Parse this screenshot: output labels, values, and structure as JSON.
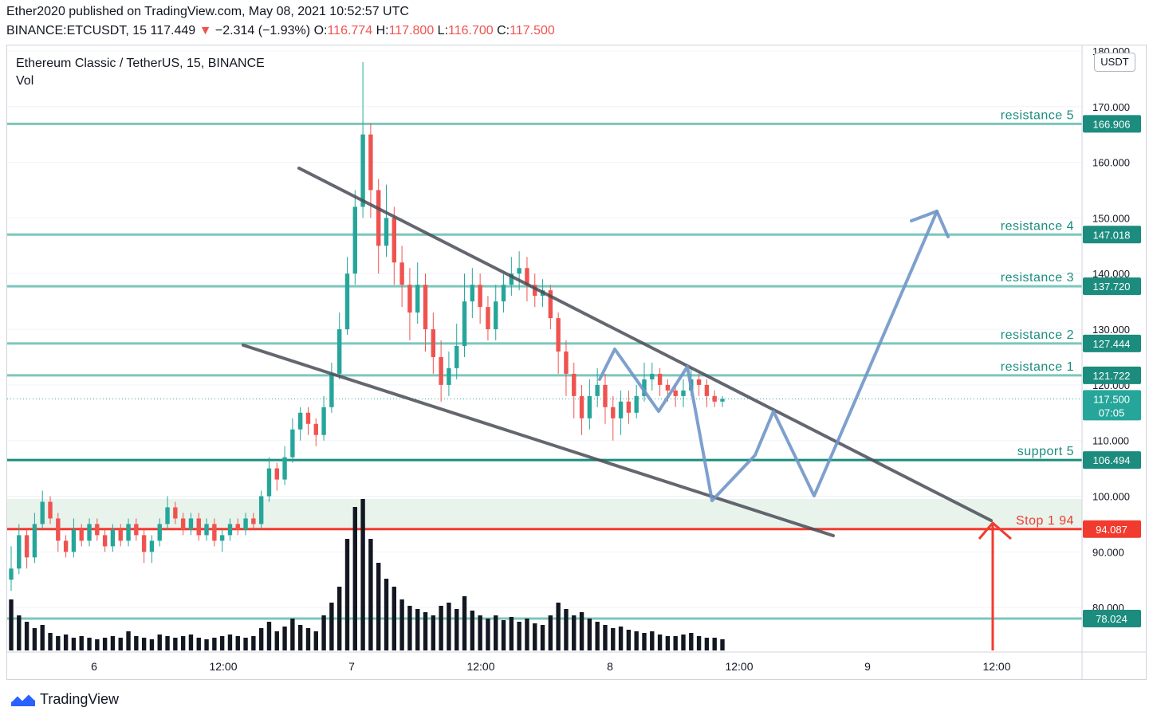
{
  "header": {
    "publish_line": "Ether2020 published on TradingView.com, May 08, 2021 10:52:57 UTC",
    "symbol": "BINANCE:ETCUSDT, 15",
    "last": "117.449",
    "change_arrow": "▼",
    "change": "−2.314 (−1.93%)",
    "o_label": "O:",
    "o_value": "116.774",
    "h_label": "H:",
    "h_value": "117.800",
    "l_label": "L:",
    "l_value": "116.700",
    "c_label": "C:",
    "c_value": "117.500"
  },
  "legend": {
    "title": "Ethereum Classic / TetherUS, 15, BINANCE",
    "vol": "Vol"
  },
  "unit_label": "USDT",
  "footer": {
    "brand": "TradingView"
  },
  "colors": {
    "up": "#26a69a",
    "down": "#ef5350",
    "level": "#7cc6bc",
    "level_dark": "#1b8c7e",
    "stop": "#f23b2f",
    "trend": "#4a4d57",
    "projection": "#7096c8",
    "volume": "#131722"
  },
  "chart_data": {
    "type": "candlestick",
    "symbol": "ETCUSDT",
    "interval": "15",
    "ylim": [
      72,
      181
    ],
    "y_ticks": [
      "180.000",
      "170.000",
      "160.000",
      "150.000",
      "140.000",
      "130.000",
      "120.000",
      "110.000",
      "100.000",
      "90.000",
      "80.000"
    ],
    "x_ticks": [
      "6",
      "12:00",
      "7",
      "12:00",
      "8",
      "12:00",
      "9",
      "12:00"
    ],
    "current_price": "117.500",
    "countdown": "07:05",
    "levels": [
      {
        "label": "resistance 5",
        "price": 166.906,
        "price_label": "166.906"
      },
      {
        "label": "resistance 4",
        "price": 147.018,
        "price_label": "147.018"
      },
      {
        "label": "resistance 3",
        "price": 137.72,
        "price_label": "137.720"
      },
      {
        "label": "resistance 2",
        "price": 127.444,
        "price_label": "127.444"
      },
      {
        "label": "resistance 1",
        "price": 121.722,
        "price_label": "121.722"
      },
      {
        "label": "support 5",
        "price": 106.494,
        "price_label": "106.494"
      },
      {
        "label": "Stop 1  94",
        "price": 94.087,
        "price_label": "94.087"
      },
      {
        "label": "",
        "price": 78.024,
        "price_label": "78.024"
      }
    ],
    "zone": [
      94.087,
      99.5
    ],
    "candles": [
      [
        85,
        87,
        91,
        83
      ],
      [
        87,
        93,
        95,
        86
      ],
      [
        93,
        89,
        94,
        87
      ],
      [
        89,
        95,
        97,
        88
      ],
      [
        95,
        99,
        101,
        94
      ],
      [
        99,
        96,
        100,
        95
      ],
      [
        96,
        92,
        97,
        90
      ],
      [
        92,
        90,
        93,
        89
      ],
      [
        90,
        94,
        96,
        89
      ],
      [
        94,
        92,
        95,
        91
      ],
      [
        92,
        95,
        96,
        91
      ],
      [
        95,
        93,
        96,
        92
      ],
      [
        93,
        91,
        94,
        90
      ],
      [
        91,
        94,
        95,
        90
      ],
      [
        94,
        92,
        95,
        91
      ],
      [
        92,
        95,
        96,
        91
      ],
      [
        95,
        93,
        96,
        92
      ],
      [
        93,
        90,
        94,
        88
      ],
      [
        90,
        92,
        93,
        88
      ],
      [
        92,
        95,
        96,
        91
      ],
      [
        95,
        98,
        100,
        94
      ],
      [
        98,
        96,
        99,
        95
      ],
      [
        96,
        94,
        97,
        93
      ],
      [
        94,
        96,
        97,
        93
      ],
      [
        96,
        93,
        97,
        92
      ],
      [
        93,
        95,
        96,
        92
      ],
      [
        95,
        92,
        96,
        91
      ],
      [
        92,
        93,
        94,
        90
      ],
      [
        93,
        95,
        96,
        92
      ],
      [
        95,
        94,
        96,
        93
      ],
      [
        94,
        96,
        97,
        93
      ],
      [
        96,
        95,
        97,
        94
      ],
      [
        95,
        100,
        101,
        94
      ],
      [
        100,
        105,
        107,
        99
      ],
      [
        105,
        103,
        106,
        101
      ],
      [
        103,
        107,
        109,
        102
      ],
      [
        107,
        112,
        114,
        106
      ],
      [
        112,
        115,
        116,
        110
      ],
      [
        115,
        113,
        116,
        111
      ],
      [
        113,
        111,
        114,
        109
      ],
      [
        111,
        116,
        118,
        110
      ],
      [
        116,
        122,
        124,
        115
      ],
      [
        122,
        130,
        133,
        121
      ],
      [
        130,
        140,
        143,
        129
      ],
      [
        140,
        152,
        155,
        138
      ],
      [
        152,
        165,
        178,
        150
      ],
      [
        165,
        155,
        167,
        150
      ],
      [
        155,
        145,
        157,
        140
      ],
      [
        145,
        150,
        156,
        143
      ],
      [
        150,
        142,
        152,
        138
      ],
      [
        142,
        138,
        145,
        134
      ],
      [
        138,
        133,
        141,
        128
      ],
      [
        133,
        138,
        142,
        131
      ],
      [
        138,
        130,
        140,
        126
      ],
      [
        130,
        125,
        133,
        122
      ],
      [
        125,
        120,
        128,
        117
      ],
      [
        120,
        123,
        126,
        118
      ],
      [
        123,
        127,
        131,
        121
      ],
      [
        127,
        135,
        140,
        125
      ],
      [
        135,
        138,
        141,
        132
      ],
      [
        138,
        134,
        140,
        131
      ],
      [
        134,
        130,
        136,
        128
      ],
      [
        130,
        135,
        138,
        128
      ],
      [
        135,
        138,
        140,
        133
      ],
      [
        138,
        140,
        143,
        136
      ],
      [
        140,
        141,
        144,
        137
      ],
      [
        141,
        138,
        143,
        135
      ],
      [
        138,
        136,
        140,
        134
      ],
      [
        136,
        137,
        139,
        134
      ],
      [
        137,
        132,
        138,
        130
      ],
      [
        132,
        126,
        133,
        122
      ],
      [
        126,
        122,
        128,
        118
      ],
      [
        122,
        118,
        124,
        114
      ],
      [
        118,
        114,
        120,
        111
      ],
      [
        114,
        118,
        121,
        112
      ],
      [
        118,
        120,
        123,
        116
      ],
      [
        120,
        116,
        122,
        113
      ],
      [
        116,
        114,
        118,
        110
      ],
      [
        114,
        117,
        119,
        111
      ],
      [
        117,
        115,
        119,
        113
      ],
      [
        115,
        118,
        120,
        114
      ],
      [
        118,
        121,
        124,
        117
      ],
      [
        121,
        122,
        124,
        119
      ],
      [
        122,
        120,
        123,
        118
      ],
      [
        120,
        119,
        121,
        117
      ],
      [
        119,
        118,
        120,
        116
      ],
      [
        118,
        119,
        121,
        116
      ],
      [
        119,
        121,
        123,
        118
      ],
      [
        121,
        120,
        122,
        118
      ],
      [
        120,
        118,
        121,
        116
      ],
      [
        118,
        117,
        119,
        116
      ],
      [
        117,
        117.5,
        118,
        116
      ]
    ],
    "volume": [
      32,
      22,
      18,
      14,
      16,
      11,
      9,
      10,
      8,
      9,
      8,
      7,
      8,
      9,
      8,
      12,
      9,
      8,
      7,
      10,
      9,
      8,
      9,
      10,
      8,
      7,
      8,
      9,
      10,
      9,
      8,
      9,
      14,
      18,
      12,
      15,
      20,
      16,
      14,
      12,
      22,
      30,
      40,
      70,
      90,
      95,
      70,
      55,
      45,
      40,
      32,
      28,
      26,
      24,
      22,
      28,
      30,
      26,
      34,
      25,
      22,
      20,
      22,
      19,
      21,
      18,
      20,
      17,
      16,
      22,
      30,
      26,
      22,
      24,
      20,
      18,
      16,
      14,
      15,
      13,
      12,
      11,
      12,
      10,
      9,
      9,
      10,
      11,
      9,
      8,
      8,
      7
    ]
  }
}
